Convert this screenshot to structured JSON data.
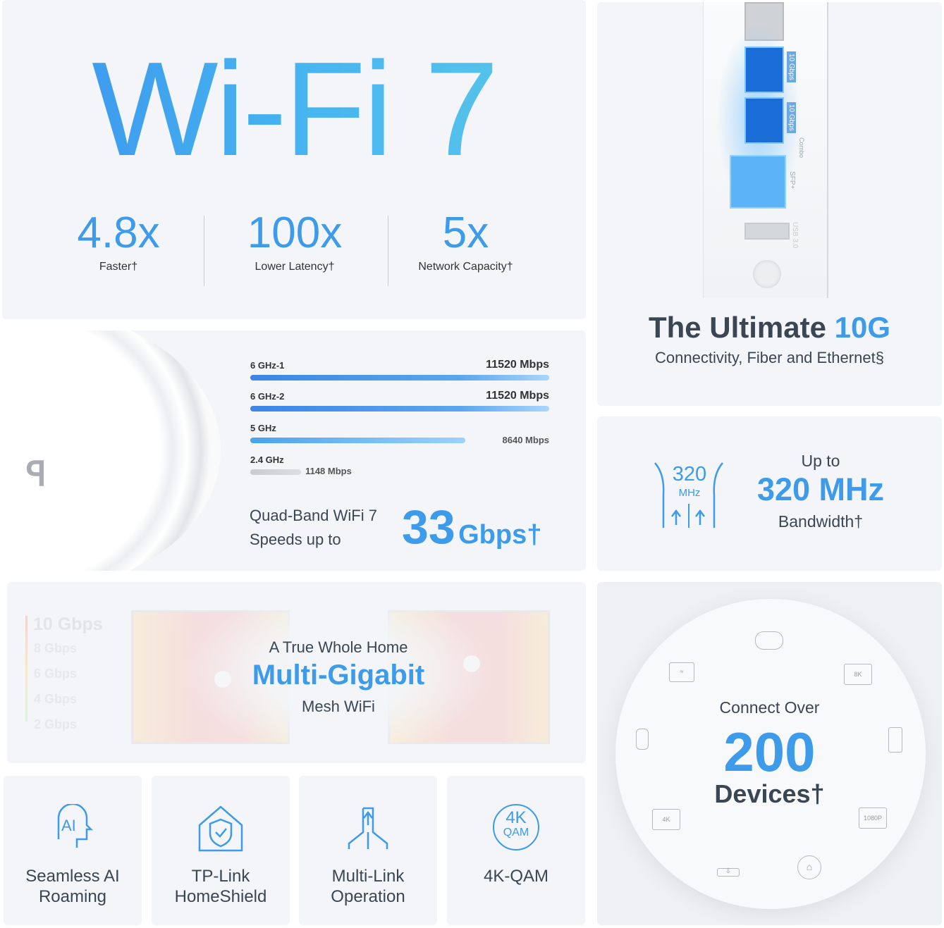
{
  "wifi7": {
    "title": "Wi-Fi 7",
    "stats": [
      {
        "value": "4.8x",
        "label": "Faster†"
      },
      {
        "value": "100x",
        "label": "Lower Latency†"
      },
      {
        "value": "5x",
        "label": "Network Capacity†"
      }
    ]
  },
  "ports": {
    "labels": [
      "10 Gbps",
      "10 Gbps",
      "Combo",
      "SFP+",
      "USB 3.0"
    ],
    "title_dark": "The Ultimate",
    "title_blue": "10G",
    "subtitle": "Connectivity, Fiber and Ethernet§"
  },
  "bands": {
    "items": [
      {
        "name": "6 GHz-1",
        "speed": "11520 Mbps",
        "mbps": 11520
      },
      {
        "name": "6 GHz-2",
        "speed": "11520 Mbps",
        "mbps": 11520
      },
      {
        "name": "5 GHz",
        "speed": "8640 Mbps",
        "mbps": 8640
      },
      {
        "name": "2.4 GHz",
        "speed": "1148 Mbps",
        "mbps": 1148
      }
    ],
    "line1": "Quad-Band WiFi 7",
    "line2": "Speeds up to",
    "total_num": "33",
    "total_unit": "Gbps†"
  },
  "channel": {
    "icon_num": "320",
    "icon_unit": "MHz",
    "up_to": "Up to",
    "value": "320 MHz",
    "label": "Bandwidth†"
  },
  "mesh": {
    "legend": [
      "10 Gbps",
      "8 Gbps",
      "6 Gbps",
      "4 Gbps",
      "2 Gbps"
    ],
    "line1": "A True Whole Home",
    "line2": "Multi-Gigabit",
    "line3": "Mesh WiFi"
  },
  "devices": {
    "line1": "Connect Over",
    "count": "200",
    "label": "Devices†",
    "icon_labels": {
      "tv8k": "8K",
      "tv4k": "4K",
      "tv1080": "1080P"
    }
  },
  "features": [
    {
      "label": "Seamless AI Roaming",
      "icon": "ai-roaming-icon"
    },
    {
      "label": "TP-Link HomeShield",
      "icon": "shield-house-icon"
    },
    {
      "label": "Multi-Link Operation",
      "icon": "multi-link-icon"
    },
    {
      "label": "4K-QAM",
      "icon": "4k-qam-icon",
      "icon_top": "4K",
      "icon_bottom": "QAM"
    }
  ],
  "colors": {
    "accent": "#3d9be9",
    "dark_text": "#3a4654",
    "panel": "#f3f5f8"
  }
}
